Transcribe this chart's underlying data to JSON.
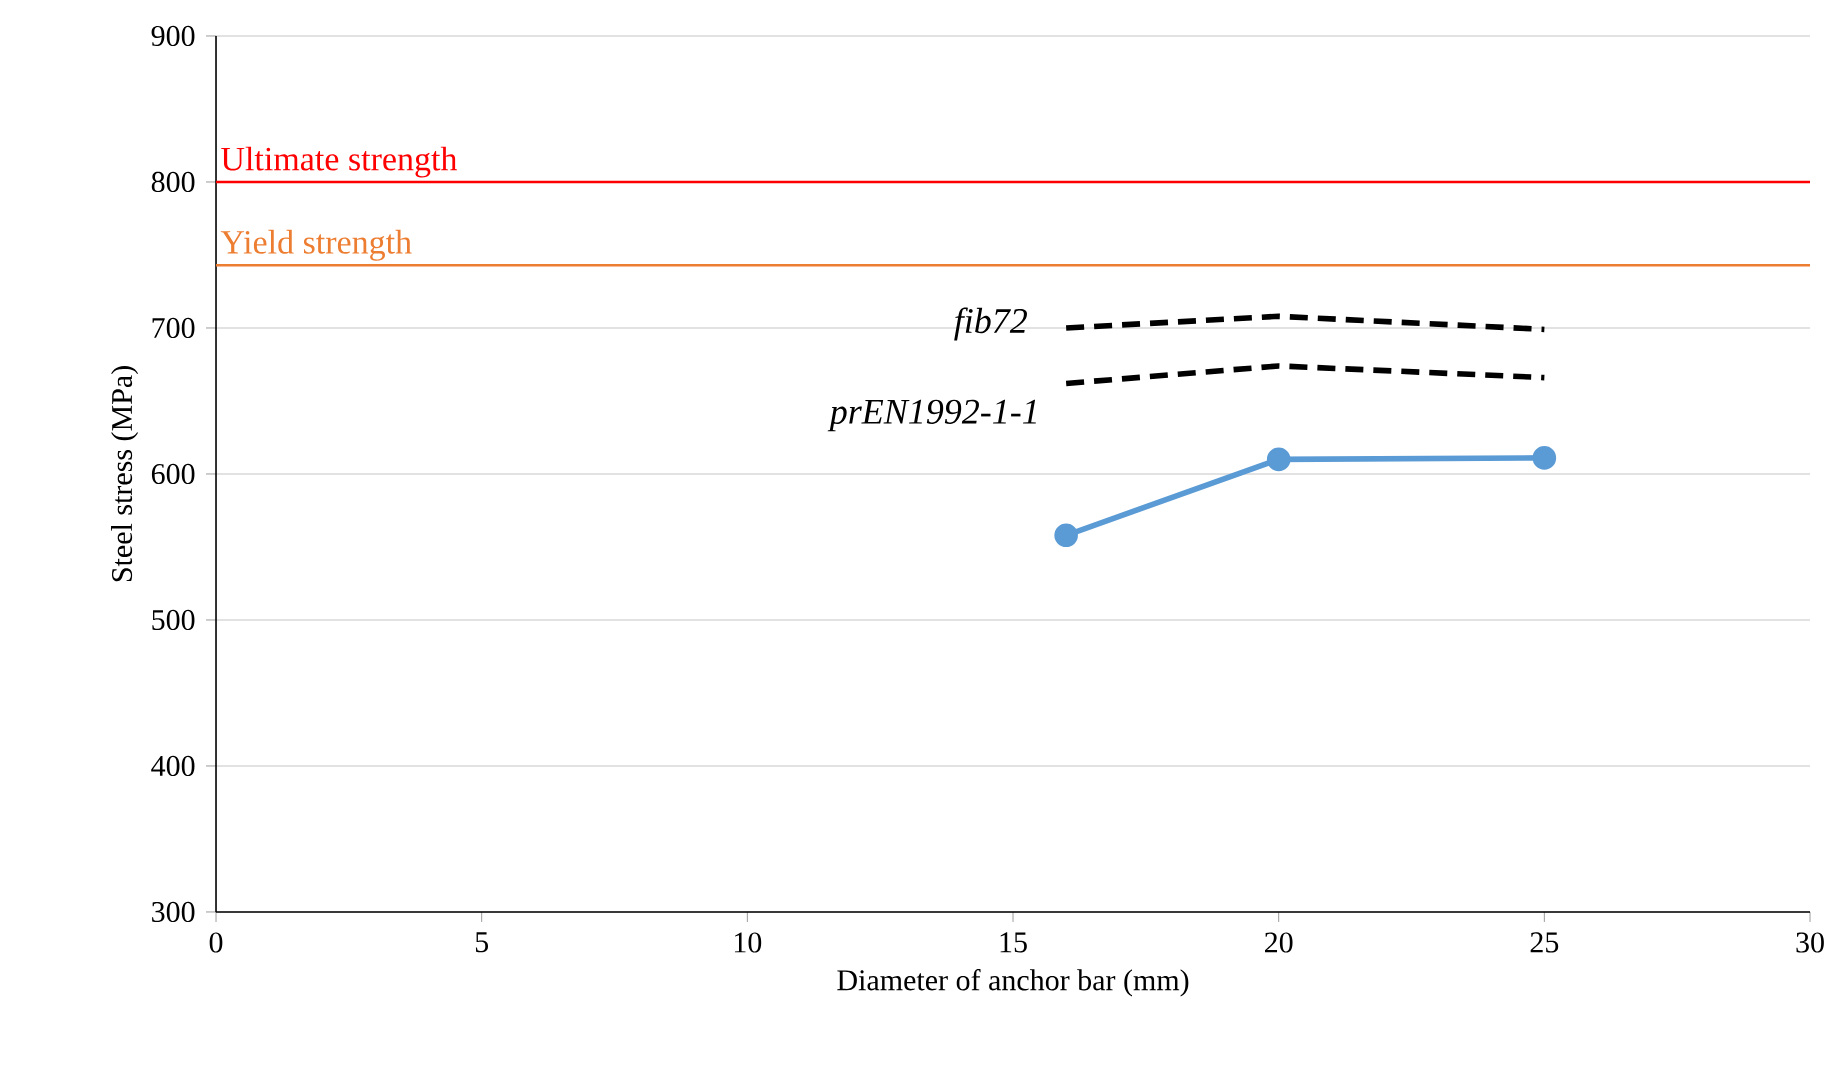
{
  "chart_data": {
    "type": "line",
    "xlabel": "Diameter of anchor bar (mm)",
    "ylabel": "Steel stress (MPa)",
    "xlim": [
      0,
      30
    ],
    "xticks": [
      0,
      5,
      10,
      15,
      20,
      25,
      30
    ],
    "ylim": [
      300,
      900
    ],
    "yticks": [
      300,
      400,
      500,
      600,
      700,
      800,
      900
    ],
    "grid": "y",
    "series": [
      {
        "color": "#5b9bd5",
        "x": [
          16,
          20,
          25
        ],
        "values": [
          558,
          610,
          611
        ],
        "marker": "circle",
        "line_style": "solid"
      },
      {
        "name": "fib72",
        "color": "#000000",
        "x": [
          16,
          20,
          25
        ],
        "values": [
          700,
          708,
          699
        ],
        "marker": "none",
        "line_style": "dashed"
      },
      {
        "name": "prEN1992-1-1",
        "color": "#000000",
        "x": [
          16,
          20,
          25
        ],
        "values": [
          662,
          674,
          666
        ],
        "marker": "none",
        "line_style": "dashed"
      }
    ],
    "ref_lines": [
      {
        "axis": "y",
        "value": 800,
        "label": "Ultimate strength",
        "color": "#ff0000"
      },
      {
        "axis": "y",
        "value": 743,
        "label": "Yield strength",
        "color": "#ed7d31"
      }
    ]
  }
}
